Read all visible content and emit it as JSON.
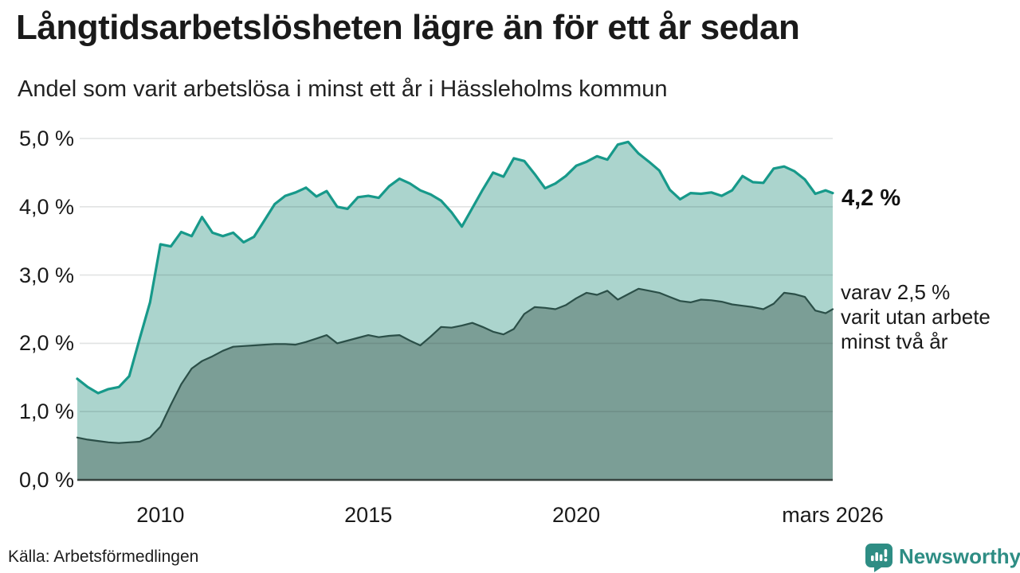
{
  "header": {
    "title": "Långtidsarbetslösheten lägre än för ett år sedan",
    "subtitle": "Andel som varit arbetslösa i minst ett år i Hässleholms kommun"
  },
  "annotations": {
    "latest_value": "4,2 %",
    "series2_line1": "varav 2,5 %",
    "series2_line2": "varit utan arbete",
    "series2_line3": "minst två år"
  },
  "source": {
    "text": "Källa: Arbetsförmedlingen"
  },
  "logo": {
    "text": "Newsworthy",
    "color": "#2e8d84"
  },
  "chart_data": {
    "type": "area",
    "title": "Långtidsarbetslösheten lägre än för ett år sedan",
    "subtitle": "Andel som varit arbetslösa i minst ett år i Hässleholms kommun",
    "unit": "%",
    "ylim": [
      0,
      5
    ],
    "grid": true,
    "grid_color": "#d9d9d9",
    "grid_overlay_color": "rgba(40,60,55,0.14)",
    "axis_color": "#37423f",
    "x": [
      2008.0,
      2008.25,
      2008.5,
      2008.75,
      2009.0,
      2009.25,
      2009.5,
      2009.75,
      2010.0,
      2010.25,
      2010.5,
      2010.75,
      2011.0,
      2011.25,
      2011.5,
      2011.75,
      2012.0,
      2012.25,
      2012.5,
      2012.75,
      2013.0,
      2013.25,
      2013.5,
      2013.75,
      2014.0,
      2014.25,
      2014.5,
      2014.75,
      2015.0,
      2015.25,
      2015.5,
      2015.75,
      2016.0,
      2016.25,
      2016.5,
      2016.75,
      2017.0,
      2017.25,
      2017.5,
      2017.75,
      2018.0,
      2018.25,
      2018.5,
      2018.75,
      2019.0,
      2019.25,
      2019.5,
      2019.75,
      2020.0,
      2020.25,
      2020.5,
      2020.75,
      2021.0,
      2021.25,
      2021.5,
      2021.75,
      2022.0,
      2022.25,
      2022.5,
      2022.75,
      2023.0,
      2023.25,
      2023.5,
      2023.75,
      2024.0,
      2024.25,
      2024.5,
      2024.75,
      2025.0,
      2025.25,
      2025.5,
      2025.75,
      2026.0,
      2026.17
    ],
    "series": [
      {
        "name": "Andel som varit arbetslösa i minst ett år",
        "line_color": "#17998a",
        "fill_color": "#abd4cd",
        "line_width": 3.2,
        "latest_label": "4,2 %",
        "values": [
          1.48,
          1.36,
          1.27,
          1.33,
          1.36,
          1.52,
          2.07,
          2.6,
          3.45,
          3.42,
          3.63,
          3.57,
          3.85,
          3.62,
          3.57,
          3.62,
          3.48,
          3.56,
          3.8,
          4.04,
          4.16,
          4.21,
          4.28,
          4.15,
          4.23,
          4.0,
          3.97,
          4.14,
          4.16,
          4.13,
          4.3,
          4.41,
          4.34,
          4.24,
          4.18,
          4.09,
          3.92,
          3.71,
          3.98,
          4.25,
          4.5,
          4.44,
          4.71,
          4.67,
          4.48,
          4.27,
          4.34,
          4.45,
          4.6,
          4.66,
          4.74,
          4.69,
          4.91,
          4.95,
          4.78,
          4.66,
          4.53,
          4.25,
          4.11,
          4.2,
          4.19,
          4.21,
          4.16,
          4.24,
          4.45,
          4.36,
          4.35,
          4.56,
          4.59,
          4.52,
          4.4,
          4.19,
          4.24,
          4.2
        ]
      },
      {
        "name": "varav utan arbete minst två år",
        "line_color": "#2b4f48",
        "fill_color": "#7b9e96",
        "line_width": 2.2,
        "latest_label": "2,5 %",
        "values": [
          0.62,
          0.59,
          0.57,
          0.55,
          0.54,
          0.55,
          0.56,
          0.62,
          0.78,
          1.1,
          1.4,
          1.63,
          1.74,
          1.81,
          1.89,
          1.95,
          1.96,
          1.97,
          1.98,
          1.99,
          1.99,
          1.98,
          2.02,
          2.07,
          2.12,
          2.0,
          2.04,
          2.08,
          2.12,
          2.09,
          2.11,
          2.12,
          2.04,
          1.97,
          2.1,
          2.24,
          2.23,
          2.26,
          2.3,
          2.24,
          2.17,
          2.13,
          2.21,
          2.43,
          2.53,
          2.52,
          2.5,
          2.56,
          2.66,
          2.74,
          2.71,
          2.77,
          2.64,
          2.72,
          2.8,
          2.77,
          2.74,
          2.68,
          2.62,
          2.6,
          2.64,
          2.63,
          2.61,
          2.57,
          2.55,
          2.53,
          2.5,
          2.58,
          2.74,
          2.72,
          2.68,
          2.48,
          2.44,
          2.5
        ]
      }
    ],
    "yticks": [
      {
        "value": 0,
        "label": "0,0 %"
      },
      {
        "value": 1,
        "label": "1,0 %"
      },
      {
        "value": 2,
        "label": "2,0 %"
      },
      {
        "value": 3,
        "label": "3,0 %"
      },
      {
        "value": 4,
        "label": "4,0 %"
      },
      {
        "value": 5,
        "label": "5,0 %"
      }
    ],
    "xticks": [
      {
        "year": 2010,
        "label": "2010"
      },
      {
        "year": 2015,
        "label": "2015"
      },
      {
        "year": 2020,
        "label": "2020"
      },
      {
        "year": 2026.17,
        "label": "mars 2026"
      }
    ],
    "legend_position": "none"
  }
}
